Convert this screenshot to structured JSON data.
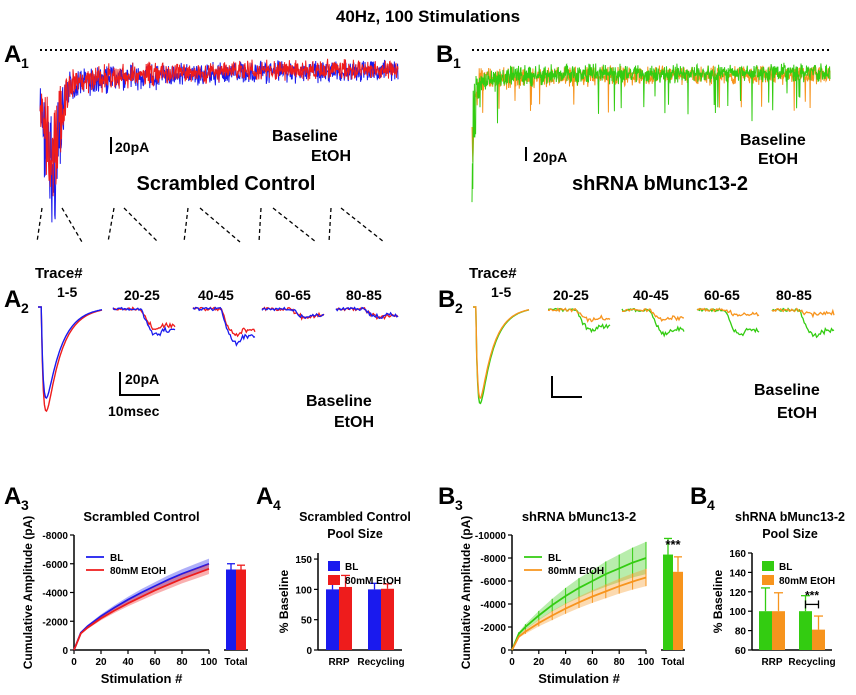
{
  "figure_title": "40Hz, 100 Stimulations",
  "colors": {
    "blue": "#1a1aee",
    "red": "#ee1c1c",
    "green": "#33cc11",
    "orange": "#f7941d",
    "black": "#000000"
  },
  "panels": {
    "A1": {
      "letter": "A",
      "sub": "1",
      "label": "Scrambled Control",
      "scale": "20pA",
      "legend": [
        "Baseline",
        "EtOH"
      ]
    },
    "B1": {
      "letter": "B",
      "sub": "1",
      "label": "shRNA bMunc13-2",
      "scale": "20pA",
      "legend": [
        "Baseline",
        "EtOH"
      ]
    },
    "A2": {
      "letter": "A",
      "sub": "2",
      "trace_header": "Trace#",
      "groups": [
        "1-5",
        "20-25",
        "40-45",
        "60-65",
        "80-85"
      ],
      "scale_y": "20pA",
      "scale_x": "10msec",
      "legend": [
        "Baseline",
        "EtOH"
      ]
    },
    "B2": {
      "letter": "B",
      "sub": "2",
      "trace_header": "Trace#",
      "groups": [
        "1-5",
        "20-25",
        "40-45",
        "60-65",
        "80-85"
      ],
      "legend": [
        "Baseline",
        "EtOH"
      ]
    },
    "A3": {
      "letter": "A",
      "sub": "3"
    },
    "A4": {
      "letter": "A",
      "sub": "4"
    },
    "B3": {
      "letter": "B",
      "sub": "3"
    },
    "B4": {
      "letter": "B",
      "sub": "4"
    }
  },
  "chart_data": [
    {
      "id": "A3",
      "type": "line",
      "title": "Scrambled Control",
      "xlabel": "Stimulation #",
      "ylabel": "Cumulative Amplitude (pA)",
      "xlim": [
        0,
        100
      ],
      "ylim": [
        0,
        -8000
      ],
      "xticks": [
        "0",
        "20",
        "40",
        "60",
        "80",
        "100"
      ],
      "yticks": [
        "0",
        "-2000",
        "-4000",
        "-6000",
        "-8000"
      ],
      "x": [
        0,
        5,
        10,
        20,
        30,
        40,
        50,
        60,
        70,
        80,
        90,
        100
      ],
      "series": [
        {
          "name": "BL",
          "values": [
            0,
            -1200,
            -1650,
            -2350,
            -2950,
            -3500,
            -4000,
            -4450,
            -4900,
            -5300,
            -5650,
            -6000
          ],
          "error": [
            0,
            60,
            90,
            130,
            170,
            210,
            240,
            270,
            300,
            320,
            340,
            360
          ]
        },
        {
          "name": "80mM EtOH",
          "values": [
            0,
            -1150,
            -1550,
            -2200,
            -2750,
            -3250,
            -3700,
            -4150,
            -4550,
            -4950,
            -5300,
            -5650
          ],
          "error": [
            0,
            60,
            90,
            130,
            170,
            210,
            240,
            270,
            300,
            320,
            340,
            360
          ]
        }
      ],
      "total_bars": {
        "label": "Total",
        "values": [
          -5600,
          -5600
        ],
        "error": [
          400,
          300
        ]
      },
      "legend": [
        "BL",
        "80mM EtOH"
      ]
    },
    {
      "id": "A4",
      "type": "bar",
      "title": "Scrambled Control",
      "subtitle": "Pool Size",
      "categories": [
        "RRP",
        "Recycling"
      ],
      "ylabel": "% Baseline",
      "ylim": [
        0,
        160
      ],
      "yticks": [
        "0",
        "50",
        "100",
        "150"
      ],
      "series": [
        {
          "name": "BL",
          "values": [
            100,
            100
          ],
          "error": [
            17,
            10
          ]
        },
        {
          "name": "80mM EtOH",
          "values": [
            104,
            101
          ],
          "error": [
            19,
            8
          ]
        }
      ],
      "legend": [
        "BL",
        "80mM EtOH"
      ]
    },
    {
      "id": "B3",
      "type": "line",
      "title": "shRNA bMunc13-2",
      "xlabel": "Stimulation #",
      "ylabel": "Cumulative Amplitude (pA)",
      "xlim": [
        0,
        100
      ],
      "ylim": [
        0,
        -10000
      ],
      "xticks": [
        "0",
        "20",
        "40",
        "60",
        "80",
        "100"
      ],
      "yticks": [
        "0",
        "-2000",
        "-4000",
        "-6000",
        "-8000",
        "-10000"
      ],
      "x": [
        0,
        5,
        10,
        20,
        30,
        40,
        50,
        60,
        70,
        80,
        90,
        100
      ],
      "series": [
        {
          "name": "BL",
          "values": [
            0,
            -1400,
            -2000,
            -3000,
            -3900,
            -4700,
            -5400,
            -6000,
            -6600,
            -7100,
            -7600,
            -8000
          ],
          "error": [
            0,
            150,
            250,
            400,
            550,
            700,
            850,
            950,
            1100,
            1200,
            1300,
            1400
          ]
        },
        {
          "name": "80mM EtOH",
          "values": [
            0,
            -1150,
            -1600,
            -2350,
            -3000,
            -3600,
            -4150,
            -4650,
            -5100,
            -5550,
            -5950,
            -6300
          ],
          "error": [
            0,
            100,
            200,
            300,
            400,
            450,
            500,
            550,
            600,
            650,
            700,
            750
          ]
        }
      ],
      "total_bars": {
        "label": "Total",
        "values": [
          -8300,
          -6800
        ],
        "error": [
          1400,
          1300
        ]
      },
      "annotation": "***",
      "legend": [
        "BL",
        "80mM EtOH"
      ]
    },
    {
      "id": "B4",
      "type": "bar",
      "title": "shRNA bMunc13-2",
      "subtitle": "Pool Size",
      "categories": [
        "RRP",
        "Recycling"
      ],
      "ylabel": "% Baseline",
      "ylim": [
        60,
        160
      ],
      "yticks": [
        "60",
        "80",
        "100",
        "120",
        "140",
        "160"
      ],
      "series": [
        {
          "name": "BL",
          "values": [
            100,
            100
          ],
          "error": [
            24,
            16
          ]
        },
        {
          "name": "80mM EtOH",
          "values": [
            100,
            81
          ],
          "error": [
            19,
            14
          ]
        }
      ],
      "annotation": "***",
      "legend": [
        "BL",
        "80mM EtOH"
      ]
    }
  ]
}
